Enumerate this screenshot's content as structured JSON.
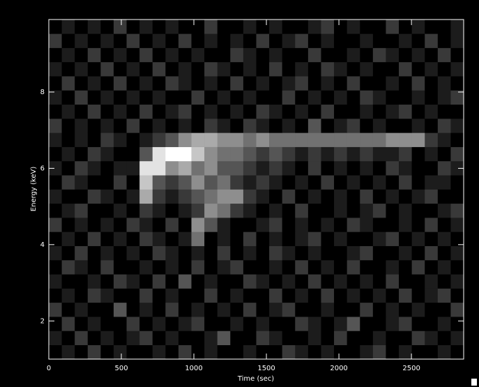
{
  "chart_data": {
    "type": "heatmap",
    "xlabel": "Time (sec)",
    "ylabel": "Energy (keV)",
    "xlim": [
      0,
      2860
    ],
    "ylim": [
      1,
      9.9
    ],
    "xticks": [
      0,
      500,
      1000,
      1500,
      2000,
      2500
    ],
    "yticks": [
      2,
      4,
      6,
      8
    ],
    "colormap": "gray",
    "z": [
      [
        0,
        1,
        0,
        2,
        0,
        1,
        0,
        0,
        1,
        0,
        2,
        0,
        1,
        0,
        0,
        1,
        0,
        0,
        2,
        1,
        0,
        1,
        0,
        0,
        1,
        2,
        0,
        1,
        0,
        0,
        1,
        0
      ],
      [
        1,
        0,
        2,
        0,
        1,
        0,
        1,
        2,
        0,
        1,
        0,
        0,
        1,
        3,
        0,
        0,
        2,
        1,
        0,
        0,
        1,
        0,
        2,
        0,
        0,
        1,
        0,
        0,
        2,
        1,
        0,
        1
      ],
      [
        0,
        2,
        0,
        1,
        0,
        0,
        2,
        0,
        1,
        0,
        1,
        2,
        0,
        0,
        1,
        0,
        1,
        0,
        0,
        2,
        1,
        0,
        1,
        3,
        0,
        0,
        1,
        2,
        0,
        0,
        1,
        0
      ],
      [
        2,
        0,
        1,
        0,
        0,
        3,
        0,
        1,
        0,
        2,
        0,
        1,
        0,
        1,
        0,
        2,
        0,
        1,
        2,
        0,
        0,
        1,
        0,
        0,
        2,
        0,
        1,
        0,
        1,
        0,
        0,
        2
      ],
      [
        0,
        1,
        0,
        2,
        1,
        0,
        0,
        2,
        0,
        1,
        0,
        0,
        2,
        0,
        1,
        0,
        0,
        2,
        0,
        1,
        0,
        2,
        0,
        1,
        0,
        1,
        0,
        2,
        0,
        1,
        2,
        0
      ],
      [
        1,
        0,
        0,
        1,
        0,
        2,
        1,
        0,
        2,
        0,
        3,
        0,
        1,
        0,
        0,
        2,
        1,
        0,
        1,
        0,
        2,
        0,
        1,
        0,
        1,
        0,
        2,
        0,
        0,
        1,
        0,
        1
      ],
      [
        0,
        2,
        1,
        0,
        2,
        0,
        0,
        1,
        0,
        1,
        0,
        2,
        0,
        1,
        2,
        0,
        0,
        1,
        0,
        2,
        0,
        1,
        0,
        2,
        0,
        0,
        1,
        0,
        2,
        0,
        1,
        0
      ],
      [
        1,
        0,
        2,
        0,
        1,
        0,
        1,
        0,
        2,
        1,
        0,
        1,
        0,
        2,
        0,
        1,
        0,
        2,
        1,
        0,
        1,
        0,
        0,
        1,
        2,
        0,
        0,
        1,
        0,
        2,
        0,
        1
      ],
      [
        0,
        1,
        0,
        2,
        0,
        1,
        0,
        2,
        1,
        0,
        1,
        4,
        0,
        1,
        0,
        2,
        0,
        1,
        0,
        1,
        2,
        0,
        1,
        0,
        0,
        1,
        2,
        0,
        1,
        0,
        1,
        0
      ],
      [
        2,
        0,
        1,
        0,
        1,
        0,
        2,
        1,
        0,
        2,
        0,
        5,
        3,
        1,
        0,
        0,
        1,
        2,
        0,
        1,
        0,
        1,
        0,
        2,
        1,
        0,
        0,
        1,
        0,
        2,
        0,
        1
      ],
      [
        0,
        1,
        2,
        0,
        0,
        1,
        0,
        2,
        1,
        0,
        1,
        2,
        5,
        4,
        2,
        1,
        0,
        1,
        0,
        2,
        0,
        0,
        1,
        0,
        1,
        2,
        0,
        1,
        0,
        0,
        1,
        2
      ],
      [
        1,
        0,
        0,
        2,
        1,
        0,
        1,
        6,
        2,
        1,
        2,
        3,
        4,
        5,
        5,
        2,
        1,
        0,
        2,
        0,
        1,
        0,
        1,
        0,
        2,
        0,
        1,
        0,
        1,
        2,
        0,
        0
      ],
      [
        0,
        2,
        1,
        0,
        0,
        2,
        0,
        7,
        3,
        2,
        3,
        5,
        3,
        4,
        2,
        1,
        2,
        1,
        0,
        1,
        0,
        2,
        0,
        1,
        0,
        1,
        0,
        2,
        0,
        1,
        1,
        0
      ],
      [
        1,
        0,
        2,
        1,
        0,
        1,
        1,
        8,
        8,
        5,
        6,
        4,
        5,
        3,
        3,
        2,
        1,
        2,
        1,
        0,
        2,
        0,
        1,
        0,
        1,
        0,
        2,
        1,
        0,
        0,
        2,
        1
      ],
      [
        0,
        1,
        0,
        2,
        1,
        0,
        0,
        3,
        8,
        9,
        9,
        7,
        5,
        4,
        4,
        3,
        2,
        3,
        2,
        1,
        2,
        1,
        2,
        1,
        2,
        1,
        1,
        2,
        0,
        1,
        0,
        2
      ],
      [
        1,
        0,
        1,
        0,
        2,
        1,
        0,
        1,
        2,
        3,
        5,
        6,
        6,
        5,
        5,
        4,
        5,
        4,
        4,
        4,
        4,
        4,
        4,
        4,
        4,
        4,
        5,
        5,
        5,
        2,
        1,
        0
      ],
      [
        2,
        0,
        1,
        0,
        1,
        0,
        2,
        0,
        1,
        0,
        1,
        0,
        2,
        1,
        0,
        2,
        1,
        0,
        1,
        0,
        3,
        0,
        1,
        2,
        0,
        1,
        0,
        0,
        1,
        0,
        2,
        1
      ],
      [
        0,
        1,
        0,
        2,
        0,
        1,
        0,
        2,
        0,
        1,
        2,
        0,
        1,
        0,
        1,
        0,
        2,
        1,
        0,
        1,
        0,
        2,
        0,
        0,
        1,
        0,
        1,
        2,
        0,
        1,
        0,
        0
      ],
      [
        1,
        0,
        2,
        0,
        1,
        0,
        1,
        0,
        1,
        0,
        0,
        2,
        0,
        1,
        0,
        1,
        0,
        0,
        2,
        0,
        1,
        0,
        1,
        0,
        2,
        1,
        0,
        0,
        1,
        0,
        1,
        2
      ],
      [
        0,
        2,
        0,
        1,
        0,
        2,
        0,
        1,
        0,
        2,
        1,
        0,
        1,
        0,
        2,
        0,
        1,
        0,
        1,
        2,
        0,
        1,
        0,
        2,
        0,
        0,
        1,
        0,
        2,
        0,
        1,
        0
      ],
      [
        1,
        0,
        1,
        0,
        2,
        0,
        1,
        0,
        2,
        0,
        1,
        0,
        2,
        1,
        0,
        1,
        0,
        2,
        0,
        1,
        0,
        2,
        1,
        0,
        1,
        0,
        0,
        2,
        0,
        1,
        0,
        1
      ],
      [
        0,
        1,
        0,
        2,
        0,
        1,
        0,
        2,
        0,
        1,
        0,
        1,
        0,
        0,
        2,
        1,
        0,
        1,
        0,
        0,
        2,
        0,
        0,
        1,
        0,
        2,
        1,
        0,
        1,
        0,
        2,
        0
      ],
      [
        2,
        0,
        1,
        0,
        1,
        0,
        2,
        0,
        1,
        0,
        2,
        0,
        1,
        0,
        1,
        0,
        2,
        0,
        1,
        2,
        0,
        1,
        0,
        0,
        1,
        0,
        0,
        1,
        0,
        2,
        0,
        1
      ],
      [
        0,
        1,
        0,
        1,
        0,
        2,
        0,
        1,
        0,
        1,
        0,
        0,
        2,
        0,
        0,
        1,
        0,
        1,
        0,
        0,
        1,
        2,
        0,
        1,
        0,
        0,
        2,
        0,
        1,
        0,
        0,
        1
      ]
    ]
  }
}
